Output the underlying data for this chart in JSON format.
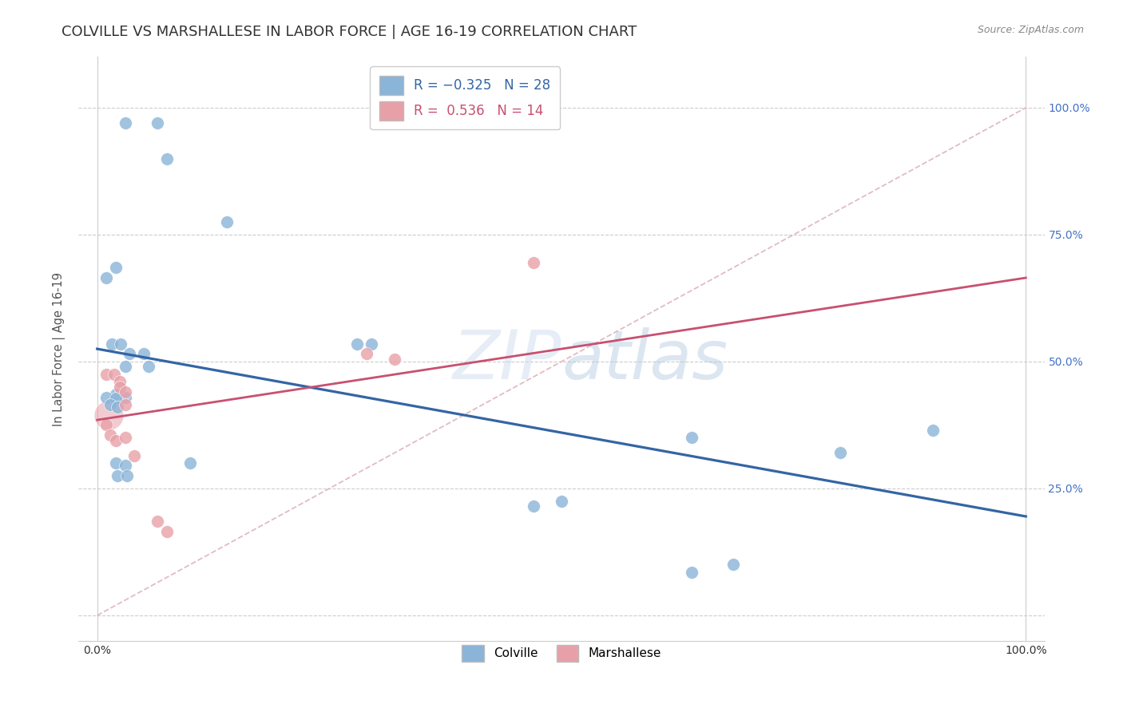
{
  "title": "COLVILLE VS MARSHALLESE IN LABOR FORCE | AGE 16-19 CORRELATION CHART",
  "source": "Source: ZipAtlas.com",
  "ylabel": "In Labor Force | Age 16-19",
  "colville_color": "#8ab4d8",
  "marshallese_color": "#e8a0a8",
  "colville_line_color": "#3465a4",
  "marshallese_line_color": "#c85070",
  "diagonal_color": "#ddb0b8",
  "background_color": "#ffffff",
  "right_tick_color": "#4472c4",
  "colville_points": [
    [
      0.03,
      0.97
    ],
    [
      0.065,
      0.97
    ],
    [
      0.075,
      0.9
    ],
    [
      0.01,
      0.665
    ],
    [
      0.02,
      0.685
    ],
    [
      0.14,
      0.775
    ],
    [
      0.016,
      0.535
    ],
    [
      0.025,
      0.535
    ],
    [
      0.035,
      0.515
    ],
    [
      0.05,
      0.515
    ],
    [
      0.28,
      0.535
    ],
    [
      0.295,
      0.535
    ],
    [
      0.03,
      0.49
    ],
    [
      0.055,
      0.49
    ],
    [
      0.02,
      0.435
    ],
    [
      0.03,
      0.43
    ],
    [
      0.01,
      0.43
    ],
    [
      0.02,
      0.428
    ],
    [
      0.014,
      0.415
    ],
    [
      0.022,
      0.41
    ],
    [
      0.02,
      0.3
    ],
    [
      0.03,
      0.295
    ],
    [
      0.1,
      0.3
    ],
    [
      0.022,
      0.275
    ],
    [
      0.032,
      0.275
    ],
    [
      0.47,
      0.215
    ],
    [
      0.5,
      0.225
    ],
    [
      0.64,
      0.35
    ],
    [
      0.8,
      0.32
    ],
    [
      0.64,
      0.085
    ],
    [
      0.685,
      0.1
    ],
    [
      0.9,
      0.365
    ]
  ],
  "marshallese_points": [
    [
      0.01,
      0.475
    ],
    [
      0.018,
      0.475
    ],
    [
      0.024,
      0.46
    ],
    [
      0.024,
      0.45
    ],
    [
      0.03,
      0.44
    ],
    [
      0.03,
      0.415
    ],
    [
      0.01,
      0.375
    ],
    [
      0.014,
      0.355
    ],
    [
      0.02,
      0.345
    ],
    [
      0.03,
      0.35
    ],
    [
      0.04,
      0.315
    ],
    [
      0.065,
      0.185
    ],
    [
      0.075,
      0.165
    ],
    [
      0.47,
      0.695
    ],
    [
      0.29,
      0.515
    ],
    [
      0.32,
      0.505
    ]
  ],
  "marshallese_large_point": [
    0.012,
    0.395
  ],
  "colville_line": [
    [
      0.0,
      0.525
    ],
    [
      1.0,
      0.195
    ]
  ],
  "marshallese_line": [
    [
      0.0,
      0.385
    ],
    [
      1.0,
      0.665
    ]
  ],
  "xlim": [
    -0.02,
    1.02
  ],
  "ylim": [
    -0.05,
    1.1
  ],
  "y_ticks": [
    0.25,
    0.5,
    0.75,
    1.0
  ],
  "y_tick_labels": [
    "25.0%",
    "50.0%",
    "75.0%",
    "100.0%"
  ],
  "x_ticks": [
    0.0,
    1.0
  ],
  "x_tick_labels": [
    "0.0%",
    "100.0%"
  ],
  "title_fontsize": 13,
  "label_fontsize": 10.5,
  "tick_fontsize": 10,
  "legend_fontsize": 11
}
